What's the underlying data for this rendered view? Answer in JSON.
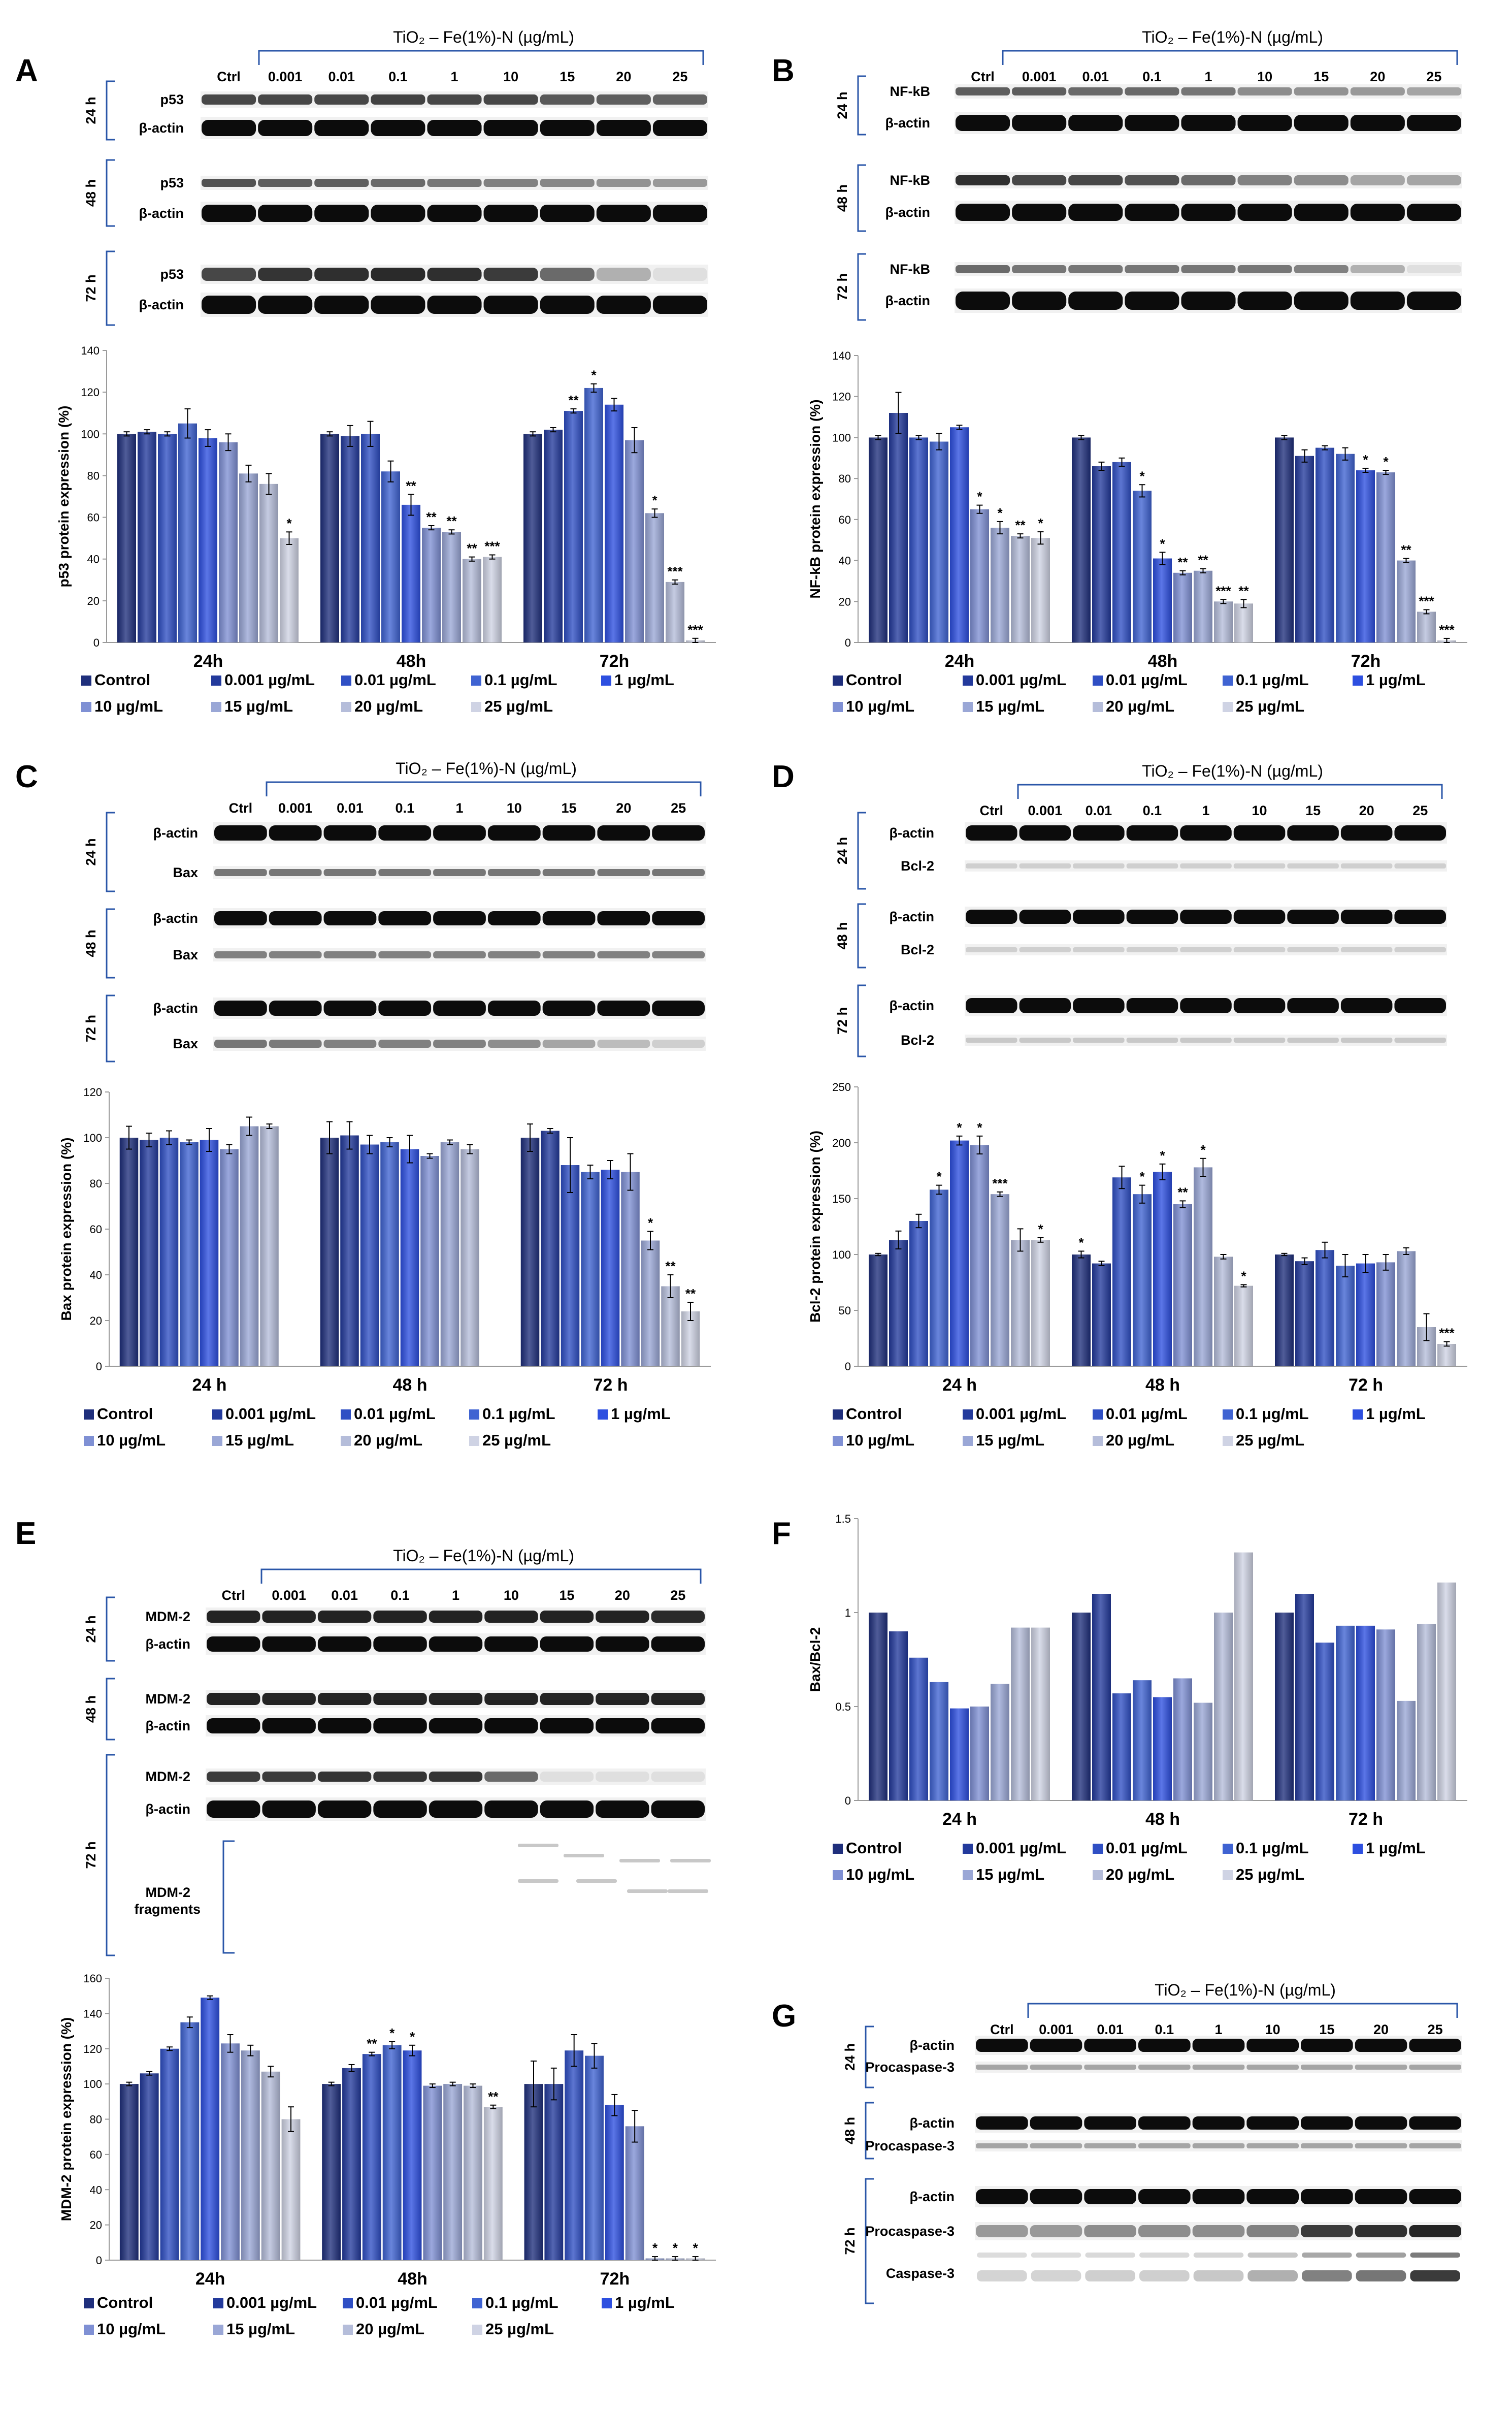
{
  "figure": {
    "panel_letters": [
      "A",
      "B",
      "C",
      "D",
      "E",
      "F",
      "G"
    ],
    "series_names": [
      "Control",
      "0.001 µg/mL",
      "0.01 µg/mL",
      "0.1 µg/mL",
      "1 µg/mL",
      "10 µg/mL",
      "15 µg/mL",
      "20 µg/mL",
      "25 µg/mL"
    ],
    "series_colors": [
      "#1f2f7c",
      "#233a9c",
      "#2f4fc4",
      "#3f63d2",
      "#2d4fe0",
      "#7f90d4",
      "#9aa7d6",
      "#b5bdda",
      "#cfd3e4"
    ],
    "blot_header": "TiO₂ – Fe(1%)-N (µg/mL)",
    "lane_labels": [
      "Ctrl",
      "0.001",
      "0.01",
      "0.1",
      "1",
      "10",
      "15",
      "20",
      "25"
    ],
    "time_labels": [
      "24 h",
      "48 h",
      "72 h"
    ],
    "blots": {
      "A": {
        "rows": [
          [
            "p53",
            "β-actin"
          ],
          [
            "p53",
            "β-actin"
          ],
          [
            "p53",
            "β-actin"
          ]
        ]
      },
      "B": {
        "rows": [
          [
            "NF-kB",
            "β-actin"
          ],
          [
            "NF-kB",
            "β-actin"
          ],
          [
            "NF-kB",
            "β-actin"
          ]
        ]
      },
      "C": {
        "rows": [
          [
            "β-actin",
            "Bax"
          ],
          [
            "β-actin",
            "Bax"
          ],
          [
            "β-actin",
            "Bax"
          ]
        ]
      },
      "D": {
        "rows": [
          [
            "β-actin",
            "Bcl-2"
          ],
          [
            "β-actin",
            "Bcl-2"
          ],
          [
            "β-actin",
            "Bcl-2"
          ]
        ]
      },
      "E": {
        "rows": [
          [
            "MDM-2",
            "β-actin"
          ],
          [
            "MDM-2",
            "β-actin"
          ],
          [
            "MDM-2",
            "β-actin"
          ]
        ],
        "extra_line1": "MDM-2",
        "extra_line2": "fragments"
      },
      "G": {
        "rows": [
          [
            "β-actin",
            "Procaspase-3"
          ],
          [
            "β-actin",
            "Procaspase-3"
          ],
          [
            "β-actin",
            "Procaspase-3"
          ]
        ],
        "extra_label": "Caspase-3"
      }
    }
  },
  "chart_data": [
    {
      "id": "A",
      "type": "bar",
      "ylabel": "p53 protein expression (%)",
      "ylim": [
        0,
        140
      ],
      "ytick_step": 20,
      "categories": [
        "24h",
        "48h",
        "72h"
      ],
      "values": [
        [
          100,
          101,
          100,
          105,
          98,
          96,
          81,
          76,
          50
        ],
        [
          100,
          99,
          100,
          82,
          66,
          55,
          53,
          40,
          41
        ],
        [
          100,
          102,
          111,
          122,
          114,
          97,
          62,
          29,
          1
        ]
      ],
      "errors": [
        [
          1,
          1,
          1,
          7,
          4,
          4,
          4,
          5,
          3
        ],
        [
          1,
          5,
          6,
          5,
          5,
          1,
          1,
          1,
          1
        ],
        [
          1,
          1,
          1,
          2,
          3,
          6,
          2,
          1,
          1
        ]
      ],
      "stars": [
        [
          "",
          "",
          "",
          "",
          "",
          "",
          "",
          "",
          "*"
        ],
        [
          "",
          "",
          "",
          "",
          "**",
          "**",
          "**",
          "**",
          "***"
        ],
        [
          "",
          "",
          "**",
          "*",
          "",
          "",
          "*",
          "***",
          "***"
        ]
      ]
    },
    {
      "id": "B",
      "type": "bar",
      "ylabel": "NF-kB protein expression (%)",
      "ylim": [
        0,
        140
      ],
      "ytick_step": 20,
      "categories": [
        "24h",
        "48h",
        "72h"
      ],
      "values": [
        [
          100,
          112,
          100,
          98,
          105,
          65,
          56,
          52,
          51
        ],
        [
          100,
          86,
          88,
          74,
          41,
          34,
          35,
          20,
          19
        ],
        [
          100,
          91,
          95,
          92,
          84,
          83,
          40,
          15,
          1
        ]
      ],
      "errors": [
        [
          1,
          10,
          1,
          4,
          1,
          2,
          3,
          1,
          3
        ],
        [
          1,
          2,
          2,
          3,
          3,
          1,
          1,
          1,
          2
        ],
        [
          1,
          3,
          1,
          3,
          1,
          1,
          1,
          1,
          1
        ]
      ],
      "stars": [
        [
          "",
          "",
          "",
          "",
          "",
          "*",
          "*",
          "**",
          "*"
        ],
        [
          "",
          "",
          "",
          "*",
          "*",
          "**",
          "**",
          "***",
          "**"
        ],
        [
          "",
          "",
          "",
          "",
          "*",
          "*",
          "**",
          "***",
          "***"
        ]
      ]
    },
    {
      "id": "C",
      "type": "bar",
      "ylabel": "Bax protein expression (%)",
      "ylim": [
        0,
        120
      ],
      "ytick_step": 20,
      "categories": [
        "24 h",
        "48 h",
        "72 h"
      ],
      "values": [
        [
          100,
          99,
          100,
          98,
          99,
          95,
          105,
          105,
          0
        ],
        [
          100,
          101,
          97,
          98,
          95,
          92,
          98,
          95,
          0
        ],
        [
          100,
          103,
          88,
          85,
          86,
          85,
          55,
          35,
          24
        ]
      ],
      "errors": [
        [
          5,
          3,
          3,
          1,
          5,
          2,
          4,
          1,
          0
        ],
        [
          7,
          6,
          4,
          2,
          6,
          1,
          1,
          2,
          0
        ],
        [
          6,
          1,
          12,
          3,
          4,
          8,
          4,
          5,
          4
        ]
      ],
      "stars": [
        [
          "",
          "",
          "",
          "",
          "",
          "",
          "",
          "",
          ""
        ],
        [
          "",
          "",
          "",
          "",
          "",
          "",
          "",
          "",
          ""
        ],
        [
          "",
          "",
          "",
          "",
          "",
          "",
          "*",
          "**",
          "**"
        ]
      ]
    },
    {
      "id": "D",
      "type": "bar",
      "ylabel": "Bcl-2 protein expression (%)",
      "ylim": [
        0,
        250
      ],
      "ytick_step": 50,
      "categories": [
        "24 h",
        "48 h",
        "72 h"
      ],
      "values": [
        [
          100,
          113,
          130,
          158,
          202,
          198,
          154,
          113,
          113
        ],
        [
          100,
          92,
          169,
          154,
          174,
          145,
          178,
          98,
          72
        ],
        [
          100,
          94,
          104,
          90,
          92,
          93,
          103,
          35,
          20
        ]
      ],
      "errors": [
        [
          1,
          8,
          6,
          4,
          4,
          8,
          2,
          10,
          2
        ],
        [
          3,
          2,
          10,
          8,
          7,
          3,
          8,
          2,
          1
        ],
        [
          1,
          3,
          7,
          10,
          8,
          7,
          3,
          12,
          2
        ]
      ],
      "stars": [
        [
          "",
          "",
          "",
          "*",
          "*",
          "*",
          "***",
          "",
          "*"
        ],
        [
          "*",
          "",
          "",
          "*",
          "*",
          "**",
          "*",
          "",
          "*"
        ],
        [
          "",
          "",
          "",
          "",
          "",
          "",
          "",
          "",
          "***"
        ]
      ]
    },
    {
      "id": "E",
      "type": "bar",
      "ylabel": "MDM-2 protein expression (%)",
      "ylim": [
        0,
        160
      ],
      "ytick_step": 20,
      "categories": [
        "24h",
        "48h",
        "72h"
      ],
      "values": [
        [
          100,
          106,
          120,
          135,
          149,
          123,
          119,
          107,
          80
        ],
        [
          100,
          109,
          117,
          122,
          119,
          99,
          100,
          99,
          87
        ],
        [
          100,
          100,
          119,
          116,
          88,
          76,
          1,
          1,
          1
        ]
      ],
      "errors": [
        [
          1,
          1,
          1,
          3,
          1,
          5,
          3,
          3,
          7
        ],
        [
          1,
          2,
          1,
          2,
          3,
          1,
          1,
          1,
          1
        ],
        [
          13,
          9,
          9,
          7,
          6,
          9,
          1,
          1,
          1
        ]
      ],
      "stars": [
        [
          "",
          "",
          "",
          "",
          "",
          "",
          "",
          "",
          ""
        ],
        [
          "",
          "",
          "**",
          "*",
          "*",
          "",
          "",
          "",
          "**"
        ],
        [
          "",
          "",
          "",
          "",
          "",
          "",
          "*",
          "*",
          "*"
        ]
      ]
    },
    {
      "id": "F",
      "type": "bar",
      "ylabel": "Bax/Bcl-2",
      "ylim": [
        0,
        1.5
      ],
      "ytick_step": 0.5,
      "categories": [
        "24 h",
        "48 h",
        "72 h"
      ],
      "values": [
        [
          1.0,
          0.9,
          0.76,
          0.63,
          0.49,
          0.5,
          0.62,
          0.92,
          0.92
        ],
        [
          1.0,
          1.1,
          0.57,
          0.64,
          0.55,
          0.65,
          0.52,
          1.0,
          1.32
        ],
        [
          1.0,
          1.1,
          0.84,
          0.93,
          0.93,
          0.91,
          0.53,
          0.94,
          1.16
        ]
      ]
    }
  ]
}
